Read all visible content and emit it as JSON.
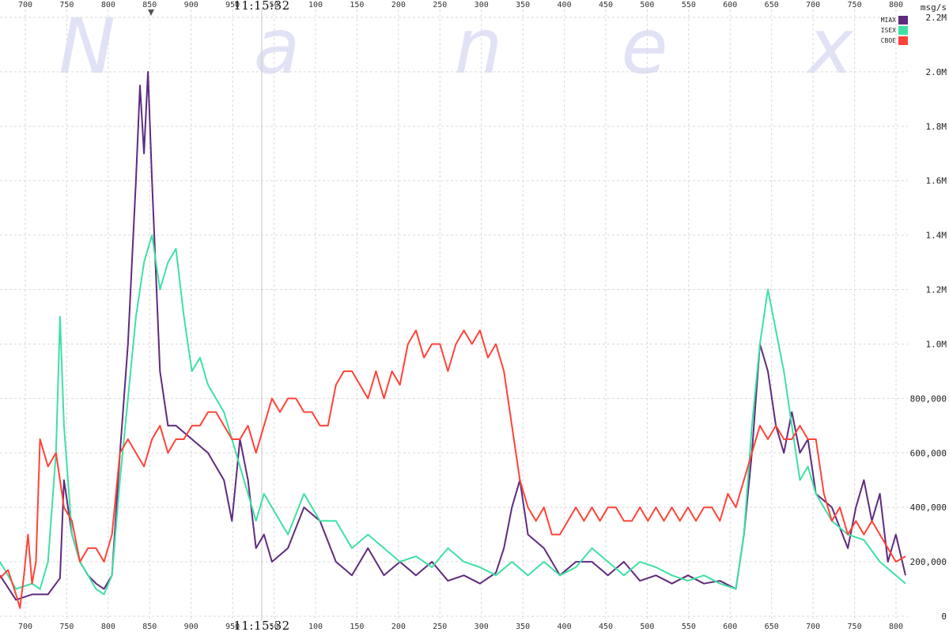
{
  "chart_data": {
    "type": "line",
    "watermark": [
      "N",
      "a",
      "n",
      "e",
      "x"
    ],
    "time_label": "11:15:32",
    "ylabel": "msg/s",
    "x_ticks": [
      "700",
      "750",
      "800",
      "850",
      "900",
      "950",
      "50",
      "100",
      "150",
      "200",
      "250",
      "300",
      "350",
      "400",
      "450",
      "500",
      "550",
      "600",
      "650",
      "700",
      "750",
      "800"
    ],
    "y_ticks": [
      "0",
      "200,000",
      "400,000",
      "600,000",
      "800,000",
      "1.0M",
      "1.2M",
      "1.4M",
      "1.6M",
      "1.8M",
      "2.0M",
      "2.2M"
    ],
    "ylim": [
      0,
      2200000
    ],
    "xlim": [
      680,
      1815
    ],
    "legend_placement": "top-right",
    "grid": true,
    "series": [
      {
        "name": "MIAX",
        "color": "#5e2b7e",
        "points": [
          [
            680,
            150000
          ],
          [
            700,
            60000
          ],
          [
            720,
            80000
          ],
          [
            740,
            80000
          ],
          [
            755,
            140000
          ],
          [
            760,
            500000
          ],
          [
            770,
            300000
          ],
          [
            780,
            200000
          ],
          [
            790,
            150000
          ],
          [
            800,
            120000
          ],
          [
            810,
            100000
          ],
          [
            820,
            150000
          ],
          [
            830,
            600000
          ],
          [
            840,
            1000000
          ],
          [
            850,
            1600000
          ],
          [
            855,
            1950000
          ],
          [
            860,
            1700000
          ],
          [
            865,
            2000000
          ],
          [
            870,
            1600000
          ],
          [
            880,
            900000
          ],
          [
            890,
            700000
          ],
          [
            900,
            700000
          ],
          [
            920,
            650000
          ],
          [
            940,
            600000
          ],
          [
            960,
            500000
          ],
          [
            970,
            350000
          ],
          [
            980,
            650000
          ],
          [
            990,
            500000
          ],
          [
            1000,
            250000
          ],
          [
            1010,
            300000
          ],
          [
            1020,
            200000
          ],
          [
            1040,
            250000
          ],
          [
            1060,
            400000
          ],
          [
            1080,
            350000
          ],
          [
            1100,
            200000
          ],
          [
            1120,
            150000
          ],
          [
            1140,
            250000
          ],
          [
            1160,
            150000
          ],
          [
            1180,
            200000
          ],
          [
            1200,
            150000
          ],
          [
            1220,
            200000
          ],
          [
            1240,
            130000
          ],
          [
            1260,
            150000
          ],
          [
            1280,
            120000
          ],
          [
            1300,
            160000
          ],
          [
            1310,
            250000
          ],
          [
            1320,
            400000
          ],
          [
            1330,
            500000
          ],
          [
            1340,
            300000
          ],
          [
            1360,
            250000
          ],
          [
            1380,
            150000
          ],
          [
            1400,
            200000
          ],
          [
            1420,
            200000
          ],
          [
            1440,
            150000
          ],
          [
            1460,
            200000
          ],
          [
            1480,
            130000
          ],
          [
            1500,
            150000
          ],
          [
            1520,
            120000
          ],
          [
            1540,
            150000
          ],
          [
            1560,
            120000
          ],
          [
            1580,
            130000
          ],
          [
            1600,
            100000
          ],
          [
            1610,
            300000
          ],
          [
            1620,
            600000
          ],
          [
            1630,
            1000000
          ],
          [
            1640,
            900000
          ],
          [
            1650,
            700000
          ],
          [
            1660,
            600000
          ],
          [
            1670,
            750000
          ],
          [
            1680,
            600000
          ],
          [
            1690,
            650000
          ],
          [
            1700,
            450000
          ],
          [
            1720,
            400000
          ],
          [
            1740,
            250000
          ],
          [
            1750,
            400000
          ],
          [
            1760,
            500000
          ],
          [
            1770,
            350000
          ],
          [
            1780,
            450000
          ],
          [
            1790,
            200000
          ],
          [
            1800,
            300000
          ],
          [
            1812,
            150000
          ]
        ]
      },
      {
        "name": "ISEX",
        "color": "#3fe0a4",
        "points": [
          [
            680,
            200000
          ],
          [
            700,
            100000
          ],
          [
            720,
            120000
          ],
          [
            730,
            100000
          ],
          [
            740,
            200000
          ],
          [
            750,
            600000
          ],
          [
            755,
            1100000
          ],
          [
            760,
            700000
          ],
          [
            770,
            300000
          ],
          [
            780,
            200000
          ],
          [
            790,
            150000
          ],
          [
            800,
            100000
          ],
          [
            810,
            80000
          ],
          [
            820,
            150000
          ],
          [
            830,
            500000
          ],
          [
            840,
            800000
          ],
          [
            850,
            1100000
          ],
          [
            860,
            1300000
          ],
          [
            870,
            1400000
          ],
          [
            880,
            1200000
          ],
          [
            890,
            1300000
          ],
          [
            900,
            1350000
          ],
          [
            910,
            1100000
          ],
          [
            920,
            900000
          ],
          [
            930,
            950000
          ],
          [
            940,
            850000
          ],
          [
            950,
            800000
          ],
          [
            960,
            750000
          ],
          [
            970,
            650000
          ],
          [
            980,
            550000
          ],
          [
            990,
            450000
          ],
          [
            1000,
            350000
          ],
          [
            1010,
            450000
          ],
          [
            1020,
            400000
          ],
          [
            1030,
            350000
          ],
          [
            1040,
            300000
          ],
          [
            1060,
            450000
          ],
          [
            1080,
            350000
          ],
          [
            1100,
            350000
          ],
          [
            1120,
            250000
          ],
          [
            1140,
            300000
          ],
          [
            1160,
            250000
          ],
          [
            1180,
            200000
          ],
          [
            1200,
            220000
          ],
          [
            1220,
            180000
          ],
          [
            1240,
            250000
          ],
          [
            1260,
            200000
          ],
          [
            1280,
            180000
          ],
          [
            1300,
            150000
          ],
          [
            1320,
            200000
          ],
          [
            1340,
            150000
          ],
          [
            1360,
            200000
          ],
          [
            1380,
            150000
          ],
          [
            1400,
            180000
          ],
          [
            1420,
            250000
          ],
          [
            1440,
            200000
          ],
          [
            1460,
            150000
          ],
          [
            1480,
            200000
          ],
          [
            1500,
            180000
          ],
          [
            1520,
            150000
          ],
          [
            1540,
            130000
          ],
          [
            1560,
            150000
          ],
          [
            1580,
            120000
          ],
          [
            1600,
            100000
          ],
          [
            1610,
            300000
          ],
          [
            1620,
            700000
          ],
          [
            1630,
            1000000
          ],
          [
            1640,
            1200000
          ],
          [
            1650,
            1050000
          ],
          [
            1660,
            900000
          ],
          [
            1670,
            700000
          ],
          [
            1680,
            500000
          ],
          [
            1690,
            550000
          ],
          [
            1700,
            450000
          ],
          [
            1710,
            400000
          ],
          [
            1720,
            350000
          ],
          [
            1740,
            300000
          ],
          [
            1760,
            280000
          ],
          [
            1780,
            200000
          ],
          [
            1800,
            150000
          ],
          [
            1812,
            120000
          ]
        ]
      },
      {
        "name": "CBOE",
        "color": "#ff4338",
        "points": [
          [
            680,
            140000
          ],
          [
            690,
            170000
          ],
          [
            700,
            80000
          ],
          [
            705,
            30000
          ],
          [
            710,
            150000
          ],
          [
            715,
            300000
          ],
          [
            720,
            120000
          ],
          [
            725,
            200000
          ],
          [
            730,
            650000
          ],
          [
            740,
            550000
          ],
          [
            750,
            600000
          ],
          [
            760,
            400000
          ],
          [
            770,
            350000
          ],
          [
            780,
            200000
          ],
          [
            790,
            250000
          ],
          [
            800,
            250000
          ],
          [
            810,
            200000
          ],
          [
            820,
            300000
          ],
          [
            830,
            600000
          ],
          [
            840,
            650000
          ],
          [
            850,
            600000
          ],
          [
            860,
            550000
          ],
          [
            870,
            650000
          ],
          [
            880,
            700000
          ],
          [
            890,
            600000
          ],
          [
            900,
            650000
          ],
          [
            910,
            650000
          ],
          [
            920,
            700000
          ],
          [
            930,
            700000
          ],
          [
            940,
            750000
          ],
          [
            950,
            750000
          ],
          [
            960,
            700000
          ],
          [
            970,
            650000
          ],
          [
            980,
            650000
          ],
          [
            990,
            700000
          ],
          [
            1000,
            600000
          ],
          [
            1010,
            700000
          ],
          [
            1020,
            800000
          ],
          [
            1030,
            750000
          ],
          [
            1040,
            800000
          ],
          [
            1050,
            800000
          ],
          [
            1060,
            750000
          ],
          [
            1070,
            750000
          ],
          [
            1080,
            700000
          ],
          [
            1090,
            700000
          ],
          [
            1100,
            850000
          ],
          [
            1110,
            900000
          ],
          [
            1120,
            900000
          ],
          [
            1130,
            850000
          ],
          [
            1140,
            800000
          ],
          [
            1150,
            900000
          ],
          [
            1160,
            800000
          ],
          [
            1170,
            900000
          ],
          [
            1180,
            850000
          ],
          [
            1190,
            1000000
          ],
          [
            1200,
            1050000
          ],
          [
            1210,
            950000
          ],
          [
            1220,
            1000000
          ],
          [
            1230,
            1000000
          ],
          [
            1240,
            900000
          ],
          [
            1250,
            1000000
          ],
          [
            1260,
            1050000
          ],
          [
            1270,
            1000000
          ],
          [
            1280,
            1050000
          ],
          [
            1290,
            950000
          ],
          [
            1300,
            1000000
          ],
          [
            1310,
            900000
          ],
          [
            1320,
            700000
          ],
          [
            1330,
            500000
          ],
          [
            1340,
            400000
          ],
          [
            1350,
            350000
          ],
          [
            1360,
            400000
          ],
          [
            1370,
            300000
          ],
          [
            1380,
            300000
          ],
          [
            1390,
            350000
          ],
          [
            1400,
            400000
          ],
          [
            1410,
            350000
          ],
          [
            1420,
            400000
          ],
          [
            1430,
            350000
          ],
          [
            1440,
            400000
          ],
          [
            1450,
            400000
          ],
          [
            1460,
            350000
          ],
          [
            1470,
            350000
          ],
          [
            1480,
            400000
          ],
          [
            1490,
            350000
          ],
          [
            1500,
            400000
          ],
          [
            1510,
            350000
          ],
          [
            1520,
            400000
          ],
          [
            1530,
            350000
          ],
          [
            1540,
            400000
          ],
          [
            1550,
            350000
          ],
          [
            1560,
            400000
          ],
          [
            1570,
            400000
          ],
          [
            1580,
            350000
          ],
          [
            1590,
            450000
          ],
          [
            1600,
            400000
          ],
          [
            1610,
            500000
          ],
          [
            1620,
            600000
          ],
          [
            1630,
            700000
          ],
          [
            1640,
            650000
          ],
          [
            1650,
            700000
          ],
          [
            1660,
            650000
          ],
          [
            1670,
            650000
          ],
          [
            1680,
            700000
          ],
          [
            1690,
            650000
          ],
          [
            1700,
            650000
          ],
          [
            1710,
            450000
          ],
          [
            1720,
            350000
          ],
          [
            1730,
            400000
          ],
          [
            1740,
            300000
          ],
          [
            1750,
            350000
          ],
          [
            1760,
            300000
          ],
          [
            1770,
            350000
          ],
          [
            1780,
            300000
          ],
          [
            1790,
            250000
          ],
          [
            1800,
            200000
          ],
          [
            1812,
            220000
          ]
        ]
      }
    ]
  }
}
